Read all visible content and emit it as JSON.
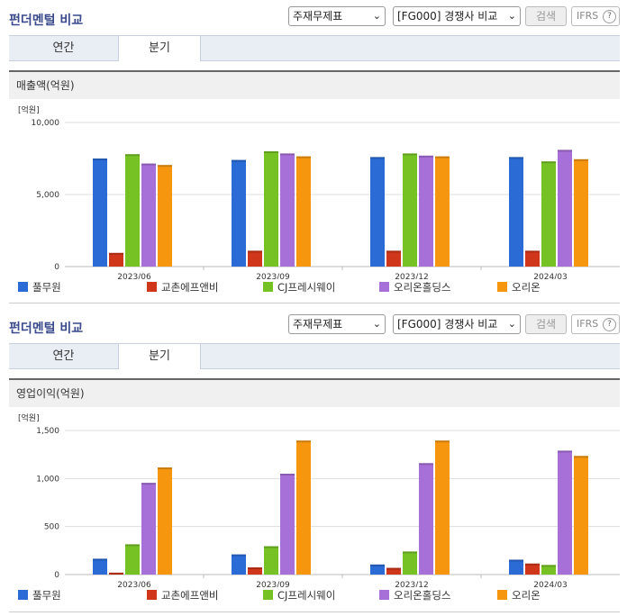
{
  "colors": {
    "series": [
      "#2a6bd6",
      "#d0361a",
      "#76c225",
      "#a76fd8",
      "#f6960e"
    ],
    "grid": "#dddddd"
  },
  "panels": [
    {
      "title": "펀더멘털 비교",
      "select1": "주재무제표",
      "select2": "[FG000] 경쟁사 비교",
      "search_label": "검색",
      "ifrs_label": "IFRS",
      "ifrs_help": "?",
      "tabs": [
        "연간",
        "분기"
      ],
      "active_tab": 1,
      "subtitle": "매출액(억원)",
      "chart_data": {
        "type": "bar",
        "unit": "[억원]",
        "categories": [
          "2023/06",
          "2023/09",
          "2023/12",
          "2024/03"
        ],
        "ylim": [
          0,
          10000
        ],
        "yticks": [
          0,
          5000,
          10000
        ],
        "ytick_labels": [
          "0",
          "5,000",
          "10,000"
        ],
        "grid": true,
        "legend_position": "bottom",
        "series": [
          {
            "name": "풀무원",
            "values": [
              7500,
              7400,
              7600,
              7600
            ]
          },
          {
            "name": "교촌에프앤비",
            "values": [
              950,
              1100,
              1100,
              1100
            ]
          },
          {
            "name": "CJ프레시웨이",
            "values": [
              7800,
              8000,
              7850,
              7300
            ]
          },
          {
            "name": "오리온홀딩스",
            "values": [
              7150,
              7850,
              7700,
              8100
            ]
          },
          {
            "name": "오리온",
            "values": [
              7050,
              7650,
              7650,
              7450
            ]
          }
        ]
      }
    },
    {
      "title": "펀더멘털 비교",
      "select1": "주재무제표",
      "select2": "[FG000] 경쟁사 비교",
      "search_label": "검색",
      "ifrs_label": "IFRS",
      "ifrs_help": "?",
      "tabs": [
        "연간",
        "분기"
      ],
      "active_tab": 1,
      "subtitle": "영업이익(억원)",
      "chart_data": {
        "type": "bar",
        "unit": "[억원]",
        "categories": [
          "2023/06",
          "2023/09",
          "2023/12",
          "2024/03"
        ],
        "ylim": [
          0,
          1500
        ],
        "yticks": [
          0,
          500,
          1000,
          1500
        ],
        "ytick_labels": [
          "0",
          "500",
          "1,000",
          "1,500"
        ],
        "grid": true,
        "legend_position": "bottom",
        "series": [
          {
            "name": "풀무원",
            "values": [
              165,
              210,
              105,
              155
            ]
          },
          {
            "name": "교촌에프앤비",
            "values": [
              20,
              75,
              70,
              115
            ]
          },
          {
            "name": "CJ프레시웨이",
            "values": [
              315,
              295,
              240,
              100
            ]
          },
          {
            "name": "오리온홀딩스",
            "values": [
              955,
              1050,
              1160,
              1290
            ]
          },
          {
            "name": "오리온",
            "values": [
              1115,
              1395,
              1395,
              1235
            ]
          }
        ]
      }
    }
  ]
}
